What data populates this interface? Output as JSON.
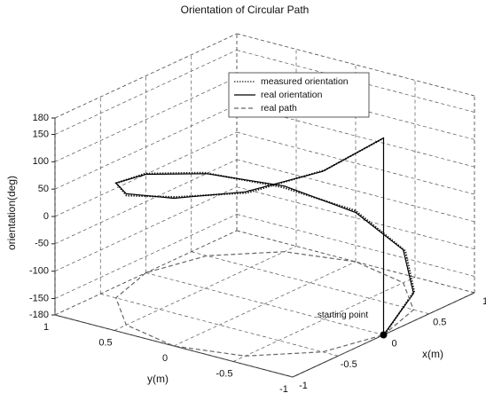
{
  "chart_data": {
    "type": "line3d",
    "title": "Orientation of Circular Path",
    "xlabel": "x(m)",
    "ylabel": "y(m)",
    "zlabel": "orientation(deg)",
    "xlim": [
      -1,
      1
    ],
    "ylim": [
      -1,
      1
    ],
    "zlim": [
      -180,
      180
    ],
    "xticks": [
      -1,
      -0.5,
      0,
      0.5,
      1
    ],
    "yticks": [
      -1,
      -0.5,
      0,
      0.5,
      1
    ],
    "zticks": [
      -180,
      -150,
      -100,
      -50,
      0,
      50,
      100,
      150,
      180
    ],
    "grid": true,
    "legend": "upper center",
    "annotation": "starting point",
    "series": [
      {
        "name": "measured orientation",
        "color": "#222",
        "dash": "1.5 1.5",
        "x": [
          0.02,
          0.52,
          0.88,
          1.01,
          0.86,
          0.49,
          -0.01,
          -0.51,
          -0.88,
          -0.99,
          -0.86,
          -0.49,
          0.01
        ],
        "y": [
          -1.01,
          -0.86,
          -0.51,
          0.01,
          0.51,
          0.88,
          1.0,
          0.86,
          0.49,
          -0.01,
          -0.51,
          -0.88,
          -0.99
        ],
        "z": [
          -175,
          -148,
          -122,
          -88,
          -62,
          -28,
          2,
          31,
          58,
          92,
          118,
          152,
          178
        ]
      },
      {
        "name": "real orientation",
        "color": "#000",
        "dash": "",
        "x": [
          0,
          0.5,
          0.87,
          1,
          0.87,
          0.5,
          0,
          -0.5,
          -0.87,
          -1,
          -0.87,
          -0.5,
          0,
          0
        ],
        "y": [
          -1,
          -0.87,
          -0.5,
          0,
          0.5,
          0.87,
          1,
          0.87,
          0.5,
          0,
          -0.5,
          -0.87,
          -1,
          -1
        ],
        "z": [
          -180,
          -150,
          -120,
          -90,
          -60,
          -30,
          0,
          30,
          60,
          90,
          120,
          150,
          180,
          -180
        ]
      },
      {
        "name": "real path",
        "color": "#666",
        "dash": "5 3",
        "x": [
          0,
          0.5,
          0.87,
          1,
          0.87,
          0.5,
          0,
          -0.5,
          -0.87,
          -1,
          -0.87,
          -0.5,
          0
        ],
        "y": [
          -1,
          -0.87,
          -0.5,
          0,
          0.5,
          0.87,
          1,
          0.87,
          0.5,
          0,
          -0.5,
          -0.87,
          -1
        ],
        "z": [
          -180,
          -180,
          -180,
          -180,
          -180,
          -180,
          -180,
          -180,
          -180,
          -180,
          -180,
          -180,
          -180
        ]
      }
    ]
  }
}
